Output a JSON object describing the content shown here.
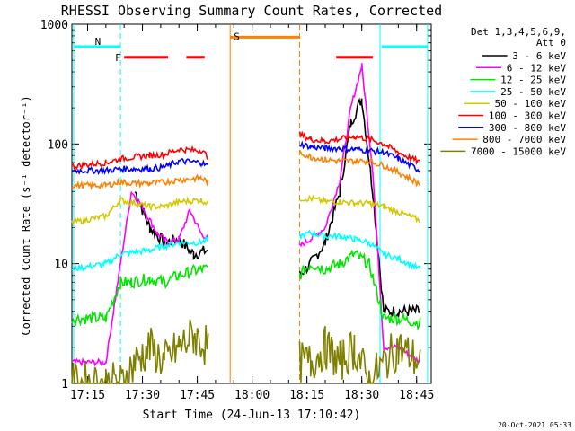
{
  "chart_data": {
    "type": "line",
    "title": "RHESSI Observing Summary Count Rates, Corrected",
    "xlabel": "Start Time (24-Jun-13 17:10:42)",
    "ylabel": "Corrected Count Rate (s⁻¹ detector⁻¹)",
    "yscale": "log",
    "ylim": [
      1,
      1000
    ],
    "xlim": [
      "17:10:42",
      "18:49:00"
    ],
    "x_ticks": [
      "17:15",
      "17:30",
      "17:45",
      "18:00",
      "18:15",
      "18:30",
      "18:45"
    ],
    "y_ticks": [
      "1",
      "10",
      "100",
      "1000"
    ],
    "legend_title": [
      "Det 1,3,4,5,6,9,",
      "Att 0"
    ],
    "legend_position": "right",
    "timestamp": "20-Oct-2021 05:33",
    "annotations": [
      {
        "text": "N",
        "x": "17:16",
        "color": "#00d8ff"
      },
      {
        "text": "F",
        "x": "17:24",
        "color": "#ff0000"
      },
      {
        "text": "S",
        "x": "17:54",
        "color": "#ff8c1a"
      }
    ],
    "gaps": [
      {
        "from": "17:58",
        "to": "18:12"
      }
    ],
    "night_periods": [
      {
        "from": "17:10:42",
        "to": "17:24"
      },
      {
        "from": "18:35",
        "to": "18:48"
      }
    ],
    "flare_flags": [
      {
        "from": "17:25",
        "to": "17:37"
      },
      {
        "from": "17:42",
        "to": "17:47"
      },
      {
        "from": "18:23",
        "to": "18:33"
      }
    ],
    "saa": {
      "from": "17:54",
      "to": "18:13"
    },
    "colors": {
      "3 - 6 keV": "#000000",
      "6 - 12 keV": "#ff00ff",
      "12 - 25 keV": "#00e600",
      "25 - 50 keV": "#00ffff",
      "50 - 100 keV": "#d4c800",
      "100 - 300 keV": "#ff0000",
      "300 - 800 keV": "#0000ff",
      "800 - 7000 keV": "#ff8000",
      "7000 - 15000 keV": "#808000"
    },
    "series": [
      {
        "name": "3 - 6 keV",
        "times": [
          "17:28",
          "17:32",
          "17:36",
          "17:40",
          "17:44",
          "17:48",
          "18:13",
          "18:16",
          "18:20",
          "18:24",
          "18:27",
          "18:30",
          "18:33",
          "18:36",
          "18:40",
          "18:46"
        ],
        "values": [
          40,
          20,
          15,
          16,
          12,
          13,
          8,
          10,
          15,
          40,
          150,
          240,
          40,
          4,
          4,
          4
        ]
      },
      {
        "name": "6 - 12 keV",
        "times": [
          "17:10:42",
          "17:20",
          "17:24",
          "17:27",
          "17:30",
          "17:34",
          "17:37",
          "17:40",
          "17:43",
          "17:46",
          "17:48",
          "18:13",
          "18:16",
          "18:20",
          "18:24",
          "18:27",
          "18:30",
          "18:33",
          "18:36",
          "18:40",
          "18:46"
        ],
        "values": [
          1.5,
          1.5,
          10,
          40,
          30,
          18,
          15,
          16,
          28,
          18,
          16,
          14,
          16,
          20,
          50,
          200,
          450,
          60,
          2,
          2,
          1.5
        ]
      },
      {
        "name": "12 - 25 keV",
        "times": [
          "17:10:42",
          "17:20",
          "17:24",
          "17:27",
          "17:32",
          "17:36",
          "17:40",
          "17:46",
          "17:48",
          "18:13",
          "18:16",
          "18:20",
          "18:24",
          "18:28",
          "18:32",
          "18:36",
          "18:40",
          "18:46"
        ],
        "values": [
          3.5,
          3.5,
          7,
          7,
          7.5,
          7,
          8,
          9,
          9,
          8,
          10,
          9,
          10,
          12,
          10,
          3.5,
          3.5,
          3.2
        ]
      },
      {
        "name": "25 - 50 keV",
        "times": [
          "17:10:42",
          "17:20",
          "17:24",
          "17:28",
          "17:32",
          "17:36",
          "17:40",
          "17:46",
          "17:48",
          "18:13",
          "18:16",
          "18:20",
          "18:24",
          "18:28",
          "18:32",
          "18:36",
          "18:40",
          "18:46"
        ],
        "values": [
          9,
          10,
          12,
          12.5,
          13,
          14,
          15,
          15,
          16,
          17,
          18,
          17,
          17,
          16,
          15,
          12,
          11,
          9
        ]
      },
      {
        "name": "50 - 100 keV",
        "times": [
          "17:10:42",
          "17:20",
          "17:24",
          "17:28",
          "17:32",
          "17:36",
          "17:40",
          "17:46",
          "17:48",
          "18:13",
          "18:16",
          "18:20",
          "18:24",
          "18:28",
          "18:32",
          "18:36",
          "18:40",
          "18:46"
        ],
        "values": [
          22,
          25,
          34,
          32,
          30,
          30,
          33,
          34,
          32,
          35,
          35,
          33,
          33,
          32,
          32,
          30,
          27,
          23
        ]
      },
      {
        "name": "100 - 300 keV",
        "times": [
          "17:10:42",
          "17:20",
          "17:24",
          "17:28",
          "17:32",
          "17:36",
          "17:40",
          "17:46",
          "17:48",
          "18:13",
          "18:16",
          "18:20",
          "18:24",
          "18:28",
          "18:32",
          "18:36",
          "18:40",
          "18:46"
        ],
        "values": [
          65,
          70,
          75,
          78,
          80,
          82,
          90,
          88,
          78,
          120,
          110,
          105,
          110,
          115,
          110,
          100,
          85,
          70
        ]
      },
      {
        "name": "300 - 800 keV",
        "times": [
          "17:10:42",
          "17:20",
          "17:24",
          "17:28",
          "17:32",
          "17:36",
          "17:40",
          "17:46",
          "17:48",
          "18:13",
          "18:16",
          "18:20",
          "18:24",
          "18:28",
          "18:32",
          "18:36",
          "18:40",
          "18:46"
        ],
        "values": [
          60,
          60,
          62,
          62,
          62,
          64,
          72,
          70,
          65,
          100,
          95,
          92,
          92,
          90,
          88,
          85,
          75,
          60
        ]
      },
      {
        "name": "800 - 7000 keV",
        "times": [
          "17:10:42",
          "17:20",
          "17:24",
          "17:28",
          "17:32",
          "17:36",
          "17:40",
          "17:46",
          "17:48",
          "18:13",
          "18:16",
          "18:20",
          "18:24",
          "18:28",
          "18:32",
          "18:36",
          "18:40",
          "18:46"
        ],
        "values": [
          45,
          45,
          48,
          47,
          47,
          48,
          50,
          52,
          48,
          85,
          78,
          74,
          72,
          72,
          72,
          66,
          58,
          46
        ]
      },
      {
        "name": "7000 - 15000 keV",
        "times": [
          "17:10:42",
          "17:20",
          "17:24",
          "17:28",
          "17:32",
          "17:36",
          "17:40",
          "17:44",
          "17:48",
          "18:13",
          "18:16",
          "18:20",
          "18:24",
          "18:28",
          "18:32",
          "18:36",
          "18:40",
          "18:46"
        ],
        "values": [
          1,
          1,
          1,
          1.5,
          2,
          1.5,
          2,
          2.5,
          2,
          1.5,
          1.5,
          2,
          1.5,
          2,
          1,
          1.5,
          2,
          1.5
        ]
      }
    ]
  }
}
